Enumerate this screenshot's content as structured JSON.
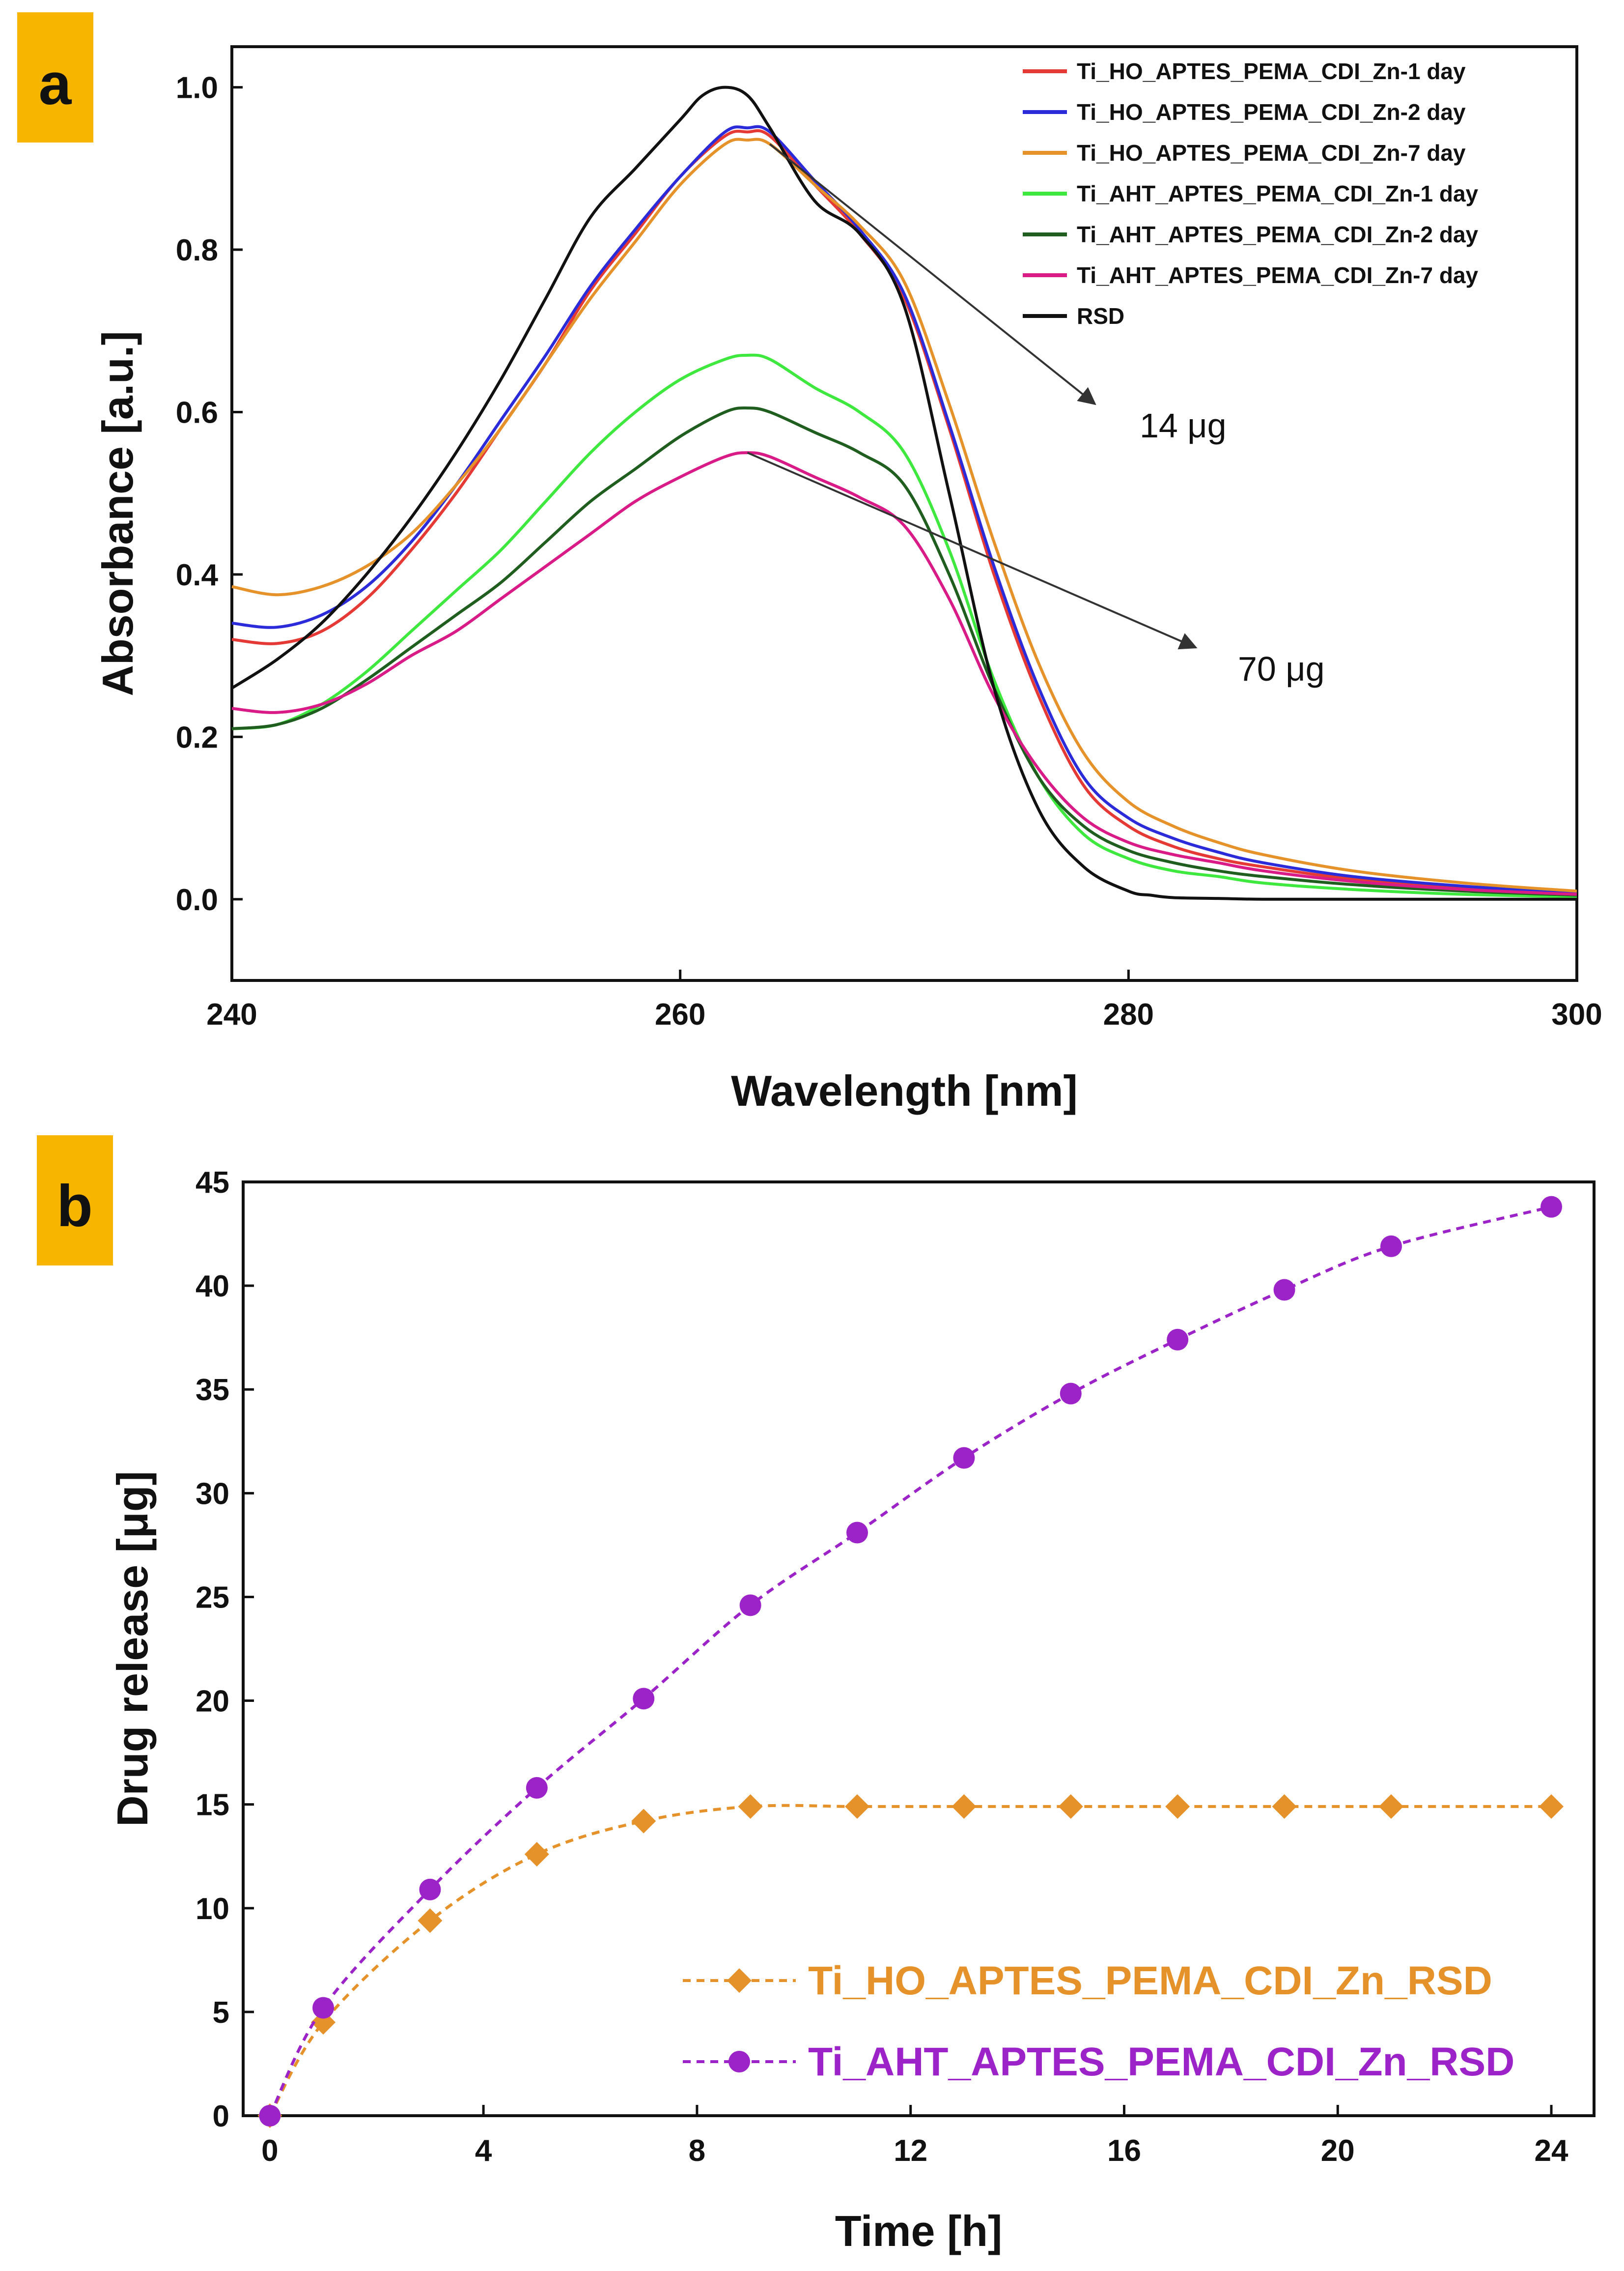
{
  "colors": {
    "badge": "#F7B500",
    "orange": "#E6922A",
    "purple": "#9B23C8"
  },
  "chart_data": [
    {
      "type": "line",
      "panel": "a",
      "title": "",
      "xlabel": "Wavelength [nm]",
      "ylabel": "Absorbance [a.u.]",
      "xlim": [
        240,
        300
      ],
      "ylim": [
        -0.1,
        1.05
      ],
      "xticks": [
        "240",
        "260",
        "280",
        "300"
      ],
      "yticks": [
        "0.0",
        "0.2",
        "0.4",
        "0.6",
        "0.8",
        "1.0"
      ],
      "grid": false,
      "legend_position": "top-right",
      "annotations": [
        {
          "text": "14 μg",
          "from": [
            264,
            0.93
          ],
          "to": [
            278.5,
            0.61
          ]
        },
        {
          "text": "70 μg",
          "from": [
            263,
            0.55
          ],
          "to": [
            283,
            0.31
          ]
        }
      ],
      "series": [
        {
          "name": "Ti_HO_APTES_PEMA_CDI_Zn-1 day",
          "color": "#E53935",
          "x": [
            240,
            242,
            244,
            246,
            248,
            250,
            252,
            254,
            256,
            258,
            260,
            262,
            263,
            264,
            266,
            268,
            270,
            272,
            274,
            276,
            278,
            280,
            282,
            284,
            286,
            290,
            295,
            300
          ],
          "y": [
            0.32,
            0.315,
            0.33,
            0.37,
            0.43,
            0.5,
            0.58,
            0.66,
            0.75,
            0.82,
            0.89,
            0.94,
            0.945,
            0.94,
            0.88,
            0.82,
            0.74,
            0.58,
            0.4,
            0.25,
            0.14,
            0.09,
            0.065,
            0.05,
            0.04,
            0.025,
            0.015,
            0.008
          ]
        },
        {
          "name": "Ti_HO_APTES_PEMA_CDI_Zn-2 day",
          "color": "#2B2BD9",
          "x": [
            240,
            242,
            244,
            246,
            248,
            250,
            252,
            254,
            256,
            258,
            260,
            262,
            263,
            264,
            266,
            268,
            270,
            272,
            274,
            276,
            278,
            280,
            282,
            284,
            286,
            290,
            295,
            300
          ],
          "y": [
            0.34,
            0.335,
            0.35,
            0.385,
            0.44,
            0.51,
            0.59,
            0.67,
            0.755,
            0.825,
            0.89,
            0.945,
            0.95,
            0.945,
            0.885,
            0.825,
            0.745,
            0.585,
            0.41,
            0.26,
            0.15,
            0.1,
            0.075,
            0.058,
            0.045,
            0.028,
            0.016,
            0.008
          ]
        },
        {
          "name": "Ti_HO_APTES_PEMA_CDI_Zn-7 day",
          "color": "#E6922A",
          "x": [
            240,
            242,
            244,
            246,
            248,
            250,
            252,
            254,
            256,
            258,
            260,
            262,
            263,
            264,
            266,
            268,
            270,
            272,
            274,
            276,
            278,
            280,
            282,
            284,
            286,
            290,
            295,
            300
          ],
          "y": [
            0.385,
            0.375,
            0.385,
            0.41,
            0.45,
            0.51,
            0.58,
            0.66,
            0.74,
            0.81,
            0.88,
            0.93,
            0.935,
            0.93,
            0.88,
            0.83,
            0.76,
            0.61,
            0.44,
            0.29,
            0.18,
            0.12,
            0.09,
            0.07,
            0.055,
            0.035,
            0.02,
            0.01
          ]
        },
        {
          "name": "Ti_AHT_APTES_PEMA_CDI_Zn-1 day",
          "color": "#3FE83F",
          "x": [
            240,
            242,
            244,
            246,
            248,
            250,
            252,
            254,
            256,
            258,
            260,
            262,
            263,
            264,
            266,
            268,
            270,
            272,
            274,
            276,
            278,
            280,
            282,
            284,
            286,
            290,
            295,
            300
          ],
          "y": [
            0.21,
            0.215,
            0.24,
            0.28,
            0.33,
            0.38,
            0.43,
            0.49,
            0.55,
            0.6,
            0.64,
            0.665,
            0.67,
            0.665,
            0.63,
            0.6,
            0.55,
            0.43,
            0.27,
            0.15,
            0.08,
            0.05,
            0.035,
            0.028,
            0.02,
            0.012,
            0.006,
            0.003
          ]
        },
        {
          "name": "Ti_AHT_APTES_PEMA_CDI_Zn-2 day",
          "color": "#1F5E1F",
          "x": [
            240,
            242,
            244,
            246,
            248,
            250,
            252,
            254,
            256,
            258,
            260,
            262,
            263,
            264,
            266,
            268,
            270,
            272,
            274,
            276,
            278,
            280,
            282,
            284,
            286,
            290,
            295,
            300
          ],
          "y": [
            0.21,
            0.215,
            0.235,
            0.27,
            0.31,
            0.35,
            0.39,
            0.44,
            0.49,
            0.53,
            0.57,
            0.6,
            0.605,
            0.6,
            0.575,
            0.55,
            0.51,
            0.4,
            0.26,
            0.15,
            0.09,
            0.06,
            0.045,
            0.035,
            0.028,
            0.018,
            0.01,
            0.005
          ]
        },
        {
          "name": "Ti_AHT_APTES_PEMA_CDI_Zn-7 day",
          "color": "#D81B87",
          "x": [
            240,
            242,
            244,
            246,
            248,
            250,
            252,
            254,
            256,
            258,
            260,
            262,
            263,
            264,
            266,
            268,
            270,
            272,
            274,
            276,
            278,
            280,
            282,
            284,
            286,
            290,
            295,
            300
          ],
          "y": [
            0.235,
            0.23,
            0.24,
            0.265,
            0.3,
            0.33,
            0.37,
            0.41,
            0.45,
            0.49,
            0.52,
            0.545,
            0.55,
            0.545,
            0.52,
            0.495,
            0.46,
            0.37,
            0.25,
            0.16,
            0.1,
            0.07,
            0.055,
            0.045,
            0.035,
            0.022,
            0.012,
            0.006
          ]
        },
        {
          "name": "RSD",
          "color": "#111111",
          "x": [
            240,
            242,
            244,
            246,
            248,
            250,
            252,
            254,
            256,
            258,
            260,
            261,
            262,
            263,
            264,
            266,
            268,
            270,
            272,
            274,
            276,
            278,
            280,
            281,
            282,
            284,
            286,
            290,
            295,
            300
          ],
          "y": [
            0.26,
            0.295,
            0.34,
            0.4,
            0.47,
            0.55,
            0.64,
            0.74,
            0.84,
            0.9,
            0.96,
            0.99,
            1.0,
            0.99,
            0.95,
            0.86,
            0.82,
            0.73,
            0.5,
            0.26,
            0.11,
            0.04,
            0.01,
            0.005,
            0.002,
            0.001,
            0.0,
            0.0,
            0.0,
            0.0
          ]
        }
      ]
    },
    {
      "type": "line",
      "panel": "b",
      "title": "",
      "xlabel": "Time [h]",
      "ylabel": "Drug release [μg]",
      "xlim": [
        -0.5,
        24.8
      ],
      "ylim": [
        0,
        45
      ],
      "xticks": [
        "0",
        "4",
        "8",
        "12",
        "16",
        "20",
        "24"
      ],
      "yticks": [
        "0",
        "5",
        "10",
        "15",
        "20",
        "25",
        "30",
        "35",
        "40",
        "45"
      ],
      "grid": false,
      "legend_position": "bottom-right",
      "x": [
        0,
        1,
        3,
        5,
        7,
        9,
        11,
        13,
        15,
        17,
        19,
        21,
        24
      ],
      "series": [
        {
          "name": "Ti_HO_APTES_PEMA_CDI_Zn_RSD",
          "color": "#E6922A",
          "marker": "diamond",
          "values": [
            0,
            4.5,
            9.4,
            12.6,
            14.2,
            14.9,
            14.9,
            14.9,
            14.9,
            14.9,
            14.9,
            14.9,
            14.9
          ]
        },
        {
          "name": "Ti_AHT_APTES_PEMA_CDI_Zn_RSD",
          "color": "#9B23C8",
          "marker": "circle",
          "values": [
            0,
            5.2,
            10.9,
            15.8,
            20.1,
            24.6,
            28.1,
            31.7,
            34.8,
            37.4,
            39.8,
            41.9,
            43.8
          ]
        }
      ]
    }
  ]
}
